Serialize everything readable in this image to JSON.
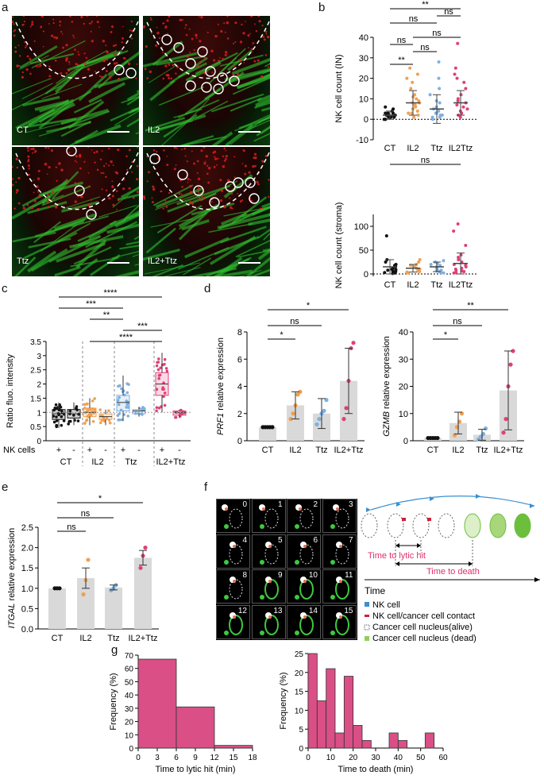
{
  "panels": {
    "a": {
      "letter": "a",
      "labels": [
        "CT",
        "IL2",
        "Ttz",
        "IL2+Ttz"
      ]
    },
    "b": {
      "letter": "b"
    },
    "c": {
      "letter": "c"
    },
    "d": {
      "letter": "d"
    },
    "e": {
      "letter": "e"
    },
    "f": {
      "letter": "f",
      "frame_numbers": [
        "0",
        "1",
        "2",
        "3",
        "4",
        "5",
        "6",
        "7",
        "8",
        "9",
        "10",
        "11",
        "12",
        "13",
        "14",
        "15"
      ],
      "time_to_lytic_hit": "Time to lytic hit",
      "time_to_death": "Time to death",
      "time_axis": "Time",
      "legend": [
        "NK cell",
        "NK cell/cancer cell contact",
        "Cancer cell nucleus(alive)",
        "Cancer cell nucleus (dead)"
      ]
    },
    "g": {
      "letter": "g"
    }
  },
  "colors": {
    "ct": "#111111",
    "il2": "#f0a050",
    "ttz": "#7fb0e0",
    "il2ttz": "#e0407a",
    "bar": "#d94f86",
    "gray": "#d9d9d9",
    "green": "#3ec93e"
  },
  "chart_data": [
    {
      "type": "scatter",
      "id": "b_top",
      "ylabel": "NK cell count (IN)",
      "categories": [
        "CT",
        "IL2",
        "Ttz",
        "IL2Ttz"
      ],
      "ylim": [
        -10,
        40
      ],
      "yticks": [
        "-10",
        "0",
        "10",
        "20",
        "30",
        "40"
      ],
      "means": [
        2,
        8,
        5,
        8
      ],
      "sd": [
        2,
        6,
        7,
        6
      ],
      "points": [
        [
          0,
          1,
          2,
          3,
          1,
          0,
          2,
          4,
          1,
          3,
          0,
          2,
          5,
          1,
          2,
          3,
          6
        ],
        [
          2,
          5,
          8,
          12,
          20,
          4,
          9,
          15,
          6,
          3,
          10,
          18,
          22,
          7,
          1,
          25,
          11,
          3,
          8
        ],
        [
          1,
          3,
          5,
          8,
          12,
          28,
          2,
          4,
          6,
          15,
          20,
          1,
          3,
          9,
          0,
          2
        ],
        [
          3,
          5,
          8,
          10,
          15,
          20,
          25,
          37,
          2,
          4,
          6,
          12,
          18,
          1,
          7,
          9,
          22
        ]
      ],
      "significance": [
        {
          "label": "**",
          "from": 0,
          "to": 3
        },
        {
          "label": "ns",
          "from": 0,
          "to": 2
        },
        {
          "label": "ns",
          "from": 2,
          "to": 3
        },
        {
          "label": "ns",
          "from": 0,
          "to": 1
        },
        {
          "label": "ns",
          "from": 1,
          "to": 3
        },
        {
          "label": "ns",
          "from": 2,
          "to": 3
        },
        {
          "label": "**",
          "from": 0,
          "to": 1
        },
        {
          "label": "ns",
          "from": 1,
          "to": 2
        }
      ]
    },
    {
      "type": "scatter",
      "id": "b_bottom",
      "ylabel": "NK cell count (stroma)",
      "categories": [
        "CT",
        "IL2",
        "Ttz",
        "IL2Ttz"
      ],
      "ylim": [
        -5,
        125
      ],
      "yticks": [
        "0",
        "50",
        "100"
      ],
      "means": [
        15,
        12,
        15,
        22
      ],
      "sd": [
        15,
        8,
        10,
        22
      ],
      "points": [
        [
          5,
          10,
          15,
          20,
          3,
          8,
          12,
          25,
          2,
          6,
          80,
          18,
          30,
          4,
          1,
          9
        ],
        [
          3,
          6,
          10,
          15,
          20,
          25,
          8,
          12,
          4,
          2,
          18,
          30,
          5,
          7
        ],
        [
          2,
          5,
          8,
          12,
          18,
          22,
          28,
          10,
          15,
          3,
          6,
          20,
          25
        ],
        [
          2,
          5,
          8,
          12,
          18,
          25,
          40,
          60,
          90,
          105,
          10,
          15,
          30,
          3,
          6,
          20,
          35
        ]
      ],
      "significance": [
        {
          "label": "ns",
          "from": 0,
          "to": 3
        }
      ]
    },
    {
      "type": "box",
      "id": "c",
      "ylabel": "Ratio fluo. intensity",
      "ylim": [
        0,
        3.5
      ],
      "yticks": [
        "0",
        "0.5",
        "1",
        "1.5",
        "2",
        "2.5",
        "3",
        "3.5"
      ],
      "nk_row_label": "NK cells",
      "nk_signs": [
        "+",
        "-",
        "+",
        "-",
        "+",
        "-",
        "+",
        "-"
      ],
      "groups": [
        "CT",
        "IL2",
        "Ttz",
        "IL2+Ttz"
      ],
      "boxes": [
        {
          "q1": 0.75,
          "median": 0.95,
          "q3": 1.1,
          "min": 0.45,
          "max": 1.35
        },
        {
          "q1": 0.8,
          "median": 0.95,
          "q3": 1.1,
          "min": 0.55,
          "max": 1.35
        },
        {
          "q1": 0.85,
          "median": 1.0,
          "q3": 1.15,
          "min": 0.55,
          "max": 1.5
        },
        {
          "q1": 0.75,
          "median": 0.85,
          "q3": 0.95,
          "min": 0.55,
          "max": 1.1
        },
        {
          "q1": 1.05,
          "median": 1.35,
          "q3": 1.6,
          "min": 0.7,
          "max": 2.3
        },
        {
          "q1": 0.95,
          "median": 1.05,
          "q3": 1.1,
          "min": 0.85,
          "max": 1.2
        },
        {
          "q1": 1.6,
          "median": 2.0,
          "q3": 2.4,
          "min": 1.0,
          "max": 3.1
        },
        {
          "q1": 0.9,
          "median": 1.0,
          "q3": 1.05,
          "min": 0.8,
          "max": 1.1
        }
      ],
      "significance": [
        {
          "label": "****",
          "from": 0,
          "to": 6
        },
        {
          "label": "***",
          "from": 0,
          "to": 4
        },
        {
          "label": "**",
          "from": 2,
          "to": 4
        },
        {
          "label": "***",
          "from": 4,
          "to": 6
        },
        {
          "label": "****",
          "from": 2,
          "to": 6
        }
      ]
    },
    {
      "type": "bar",
      "id": "d_left",
      "ylabel": "PRF1 relative expression",
      "categories": [
        "CT",
        "IL2",
        "Ttz",
        "IL2+Ttz"
      ],
      "ylim": [
        0,
        8
      ],
      "yticks": [
        "0",
        "2",
        "4",
        "6",
        "8"
      ],
      "values": [
        1.0,
        2.6,
        2.0,
        4.4
      ],
      "sd": [
        0,
        1.0,
        1.1,
        2.4
      ],
      "points": [
        [
          1,
          1,
          1,
          1,
          1
        ],
        [
          1.6,
          2.0,
          2.6,
          3.4,
          3.6
        ],
        [
          1.2,
          1.6,
          2.0,
          2.2,
          3.0
        ],
        [
          1.6,
          2.4,
          4.4,
          6.8,
          7.2
        ]
      ],
      "significance": [
        {
          "label": "*",
          "from": 0,
          "to": 3
        },
        {
          "label": "ns",
          "from": 0,
          "to": 2
        },
        {
          "label": "*",
          "from": 0,
          "to": 1
        }
      ]
    },
    {
      "type": "bar",
      "id": "d_right",
      "ylabel": "GZMB relative expression",
      "categories": [
        "CT",
        "IL2",
        "Ttz",
        "IL2+Ttz"
      ],
      "ylim": [
        0,
        40
      ],
      "yticks": [
        "0",
        "10",
        "20",
        "30",
        "40"
      ],
      "values": [
        1.0,
        6.5,
        2.2,
        18.5
      ],
      "sd": [
        0,
        4.0,
        2.0,
        14.5
      ],
      "points": [
        [
          1,
          1,
          1,
          1,
          1
        ],
        [
          2,
          5,
          7,
          10
        ],
        [
          0.5,
          1.5,
          2.5,
          4.5
        ],
        [
          3,
          8,
          20,
          28,
          33
        ]
      ],
      "significance": [
        {
          "label": "**",
          "from": 0,
          "to": 3
        },
        {
          "label": "ns",
          "from": 0,
          "to": 2
        },
        {
          "label": "*",
          "from": 0,
          "to": 1
        }
      ]
    },
    {
      "type": "bar",
      "id": "e",
      "ylabel": "ITGAL relative expression",
      "categories": [
        "CT",
        "IL2",
        "Ttz",
        "IL2+Ttz"
      ],
      "ylim": [
        0,
        2.5
      ],
      "yticks": [
        "0.0",
        "0.5",
        "1.0",
        "1.5",
        "2.0",
        "2.5"
      ],
      "values": [
        1.0,
        1.25,
        1.02,
        1.75
      ],
      "sd": [
        0,
        0.25,
        0.06,
        0.18
      ],
      "points": [
        [
          1,
          1,
          1
        ],
        [
          0.85,
          1.2,
          1.7
        ],
        [
          0.95,
          1.0,
          1.08
        ],
        [
          1.5,
          1.8,
          2.0
        ]
      ],
      "significance": [
        {
          "label": "*",
          "from": 0,
          "to": 3
        },
        {
          "label": "ns",
          "from": 0,
          "to": 2
        },
        {
          "label": "ns",
          "from": 0,
          "to": 1
        }
      ]
    },
    {
      "type": "bar",
      "id": "g_left",
      "xlabel": "Time to lytic hit (min)",
      "ylabel": "Frequency (%)",
      "ylim": [
        0,
        70
      ],
      "yticks": [
        "0",
        "10",
        "20",
        "30",
        "40",
        "50",
        "60",
        "70"
      ],
      "xlim": [
        0,
        18
      ],
      "xticks": [
        "0",
        "3",
        "6",
        "9",
        "12",
        "15",
        "18"
      ],
      "bins": [
        [
          0,
          6
        ],
        [
          6,
          12
        ],
        [
          12,
          18
        ]
      ],
      "values": [
        67,
        31,
        2
      ]
    },
    {
      "type": "bar",
      "id": "g_right",
      "xlabel": "Time to death (min)",
      "ylabel": "Frequency (%)",
      "ylim": [
        0,
        25
      ],
      "yticks": [
        "0",
        "5",
        "10",
        "15",
        "20",
        "25"
      ],
      "xlim": [
        0,
        60
      ],
      "xticks": [
        "0",
        "10",
        "20",
        "30",
        "40",
        "50",
        "60"
      ],
      "bins": [
        [
          0,
          4
        ],
        [
          4,
          8
        ],
        [
          8,
          12
        ],
        [
          12,
          16
        ],
        [
          16,
          20
        ],
        [
          20,
          24
        ],
        [
          24,
          28
        ],
        [
          28,
          32
        ],
        [
          32,
          36
        ],
        [
          36,
          40
        ],
        [
          40,
          44
        ],
        [
          44,
          48
        ],
        [
          48,
          52
        ],
        [
          52,
          56
        ],
        [
          56,
          60
        ]
      ],
      "values": [
        25,
        12.5,
        21,
        4,
        19,
        6,
        2,
        0,
        0,
        4,
        2,
        0,
        0,
        4,
        0
      ]
    }
  ]
}
